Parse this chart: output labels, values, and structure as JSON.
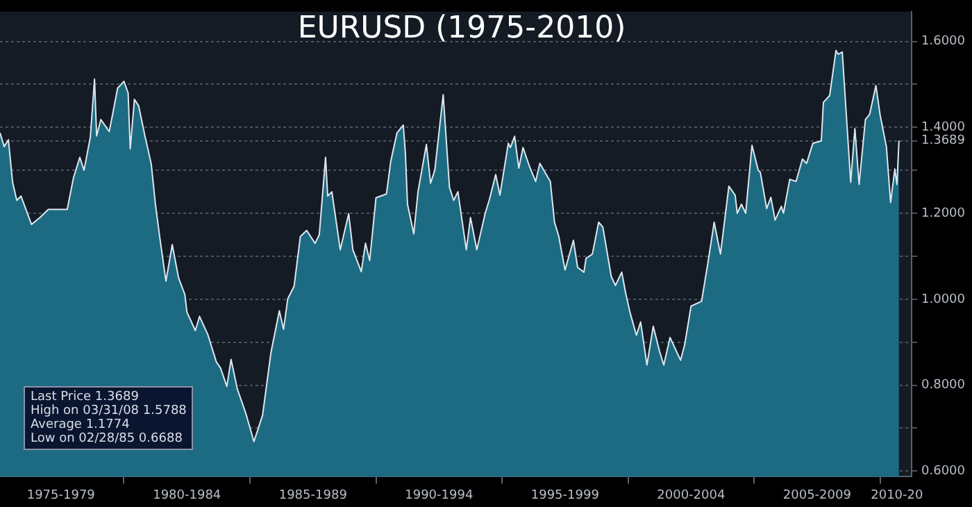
{
  "chart_data": {
    "type": "area",
    "title": "EURUSD (1975-2010)",
    "annotations": [
      "Last Price 1.3689",
      "High on 03/31/08 1.5788",
      "Average 1.1774",
      "Low on 02/28/85 0.6688"
    ],
    "xlim": [
      "1975-02",
      "2011-04"
    ],
    "xticks": [
      {
        "value": "1977-07",
        "label": "1975-1979"
      },
      {
        "value": "1980-01",
        "label": null
      },
      {
        "value": "1982-07",
        "label": "1980-1984"
      },
      {
        "value": "1985-01",
        "label": null
      },
      {
        "value": "1987-07",
        "label": "1985-1989"
      },
      {
        "value": "1990-01",
        "label": null
      },
      {
        "value": "1992-07",
        "label": "1990-1994"
      },
      {
        "value": "1995-01",
        "label": null
      },
      {
        "value": "1997-07",
        "label": "1995-1999"
      },
      {
        "value": "2000-01",
        "label": null
      },
      {
        "value": "2002-07",
        "label": "2000-2004"
      },
      {
        "value": "2005-01",
        "label": null
      },
      {
        "value": "2007-07",
        "label": "2005-2009"
      },
      {
        "value": "2010-01",
        "label": null
      },
      {
        "value": "2010-09",
        "label": "2010-20"
      }
    ],
    "ylim": [
      0.587,
      1.669
    ],
    "yticks": [
      {
        "value": 0.6,
        "label": "0.6000"
      },
      {
        "value": 0.7,
        "label": null
      },
      {
        "value": 0.8,
        "label": "0.8000"
      },
      {
        "value": 0.9,
        "label": null
      },
      {
        "value": 1.0,
        "label": "1.0000"
      },
      {
        "value": 1.1,
        "label": null
      },
      {
        "value": 1.2,
        "label": "1.2000"
      },
      {
        "value": 1.3,
        "label": null
      },
      {
        "value": 1.3689,
        "label": "1.3689"
      },
      {
        "value": 1.4,
        "label": "1.4000"
      },
      {
        "value": 1.5,
        "label": null
      },
      {
        "value": 1.6,
        "label": "1.6000"
      }
    ],
    "grid": "y",
    "series": [
      {
        "color": "#1c6b82",
        "x": [
          "1975-02",
          "1975-04",
          "1975-06",
          "1975-08",
          "1975-10",
          "1975-12",
          "1976-05",
          "1976-09",
          "1977-01",
          "1977-06",
          "1977-10",
          "1978-01",
          "1978-04",
          "1978-06",
          "1978-09",
          "1978-11",
          "1978-12",
          "1979-02",
          "1979-06",
          "1979-08",
          "1979-10",
          "1980-01",
          "1980-03",
          "1980-04",
          "1980-06",
          "1980-08",
          "1980-11",
          "1981-02",
          "1981-04",
          "1981-06",
          "1981-09",
          "1981-12",
          "1982-03",
          "1982-06",
          "1982-07",
          "1982-11",
          "1983-01",
          "1983-05",
          "1983-09",
          "1983-11",
          "1984-02",
          "1984-04",
          "1984-07",
          "1984-11",
          "1985-02-28",
          "1985-07",
          "1985-11",
          "1986-03",
          "1986-05",
          "1986-07",
          "1986-10",
          "1987-01",
          "1987-04",
          "1987-08",
          "1987-10",
          "1988-01",
          "1988-02",
          "1988-04",
          "1988-08",
          "1988-12",
          "1989-02",
          "1989-06",
          "1989-08",
          "1989-10",
          "1990-01",
          "1990-06",
          "1990-08",
          "1990-11",
          "1991-02",
          "1991-03",
          "1991-04",
          "1991-07",
          "1991-09",
          "1992-01",
          "1992-03",
          "1992-05",
          "1992-09",
          "1992-12",
          "1993-02",
          "1993-04",
          "1993-08",
          "1993-10",
          "1994-01",
          "1994-05",
          "1994-07",
          "1994-10",
          "1994-12",
          "1995-04",
          "1995-05",
          "1995-07",
          "1995-09",
          "1995-11",
          "1996-02",
          "1996-05",
          "1996-07",
          "1996-12",
          "1997-02",
          "1997-04",
          "1997-07",
          "1997-11",
          "1998-01",
          "1998-04",
          "1998-05",
          "1998-08",
          "1998-11",
          "1999-01",
          "1999-05",
          "1999-07",
          "1999-10",
          "1999-12",
          "2000-02",
          "2000-05",
          "2000-07",
          "2000-10",
          "2001-01",
          "2001-04",
          "2001-06",
          "2001-09",
          "2002-02",
          "2002-04",
          "2002-07",
          "2002-12",
          "2003-03",
          "2003-06",
          "2003-09",
          "2004-01",
          "2004-04",
          "2004-05",
          "2004-07",
          "2004-09",
          "2004-12",
          "2005-03",
          "2005-04",
          "2005-07",
          "2005-09",
          "2005-11",
          "2006-02",
          "2006-03",
          "2006-06",
          "2006-09",
          "2006-12",
          "2007-02",
          "2007-05",
          "2007-09",
          "2007-10",
          "2008-01",
          "2008-03-31",
          "2008-05",
          "2008-07",
          "2008-11",
          "2009-01",
          "2009-03",
          "2009-06",
          "2009-08",
          "2009-11",
          "2010-01",
          "2010-04",
          "2010-06",
          "2010-08",
          "2010-09",
          "2010-10"
        ],
        "values": [
          1.387,
          1.355,
          1.371,
          1.272,
          1.23,
          1.24,
          1.174,
          1.19,
          1.209,
          1.209,
          1.209,
          1.283,
          1.33,
          1.3,
          1.377,
          1.512,
          1.38,
          1.418,
          1.39,
          1.44,
          1.491,
          1.507,
          1.48,
          1.35,
          1.465,
          1.45,
          1.38,
          1.315,
          1.221,
          1.146,
          1.042,
          1.127,
          1.05,
          1.011,
          0.97,
          0.927,
          0.96,
          0.917,
          0.854,
          0.84,
          0.797,
          0.86,
          0.791,
          0.735,
          0.6688,
          0.73,
          0.876,
          0.973,
          0.93,
          1.001,
          1.03,
          1.146,
          1.16,
          1.13,
          1.15,
          1.33,
          1.24,
          1.25,
          1.115,
          1.199,
          1.115,
          1.064,
          1.13,
          1.09,
          1.236,
          1.245,
          1.32,
          1.387,
          1.405,
          1.34,
          1.221,
          1.152,
          1.25,
          1.36,
          1.27,
          1.3,
          1.476,
          1.26,
          1.23,
          1.25,
          1.115,
          1.19,
          1.115,
          1.2,
          1.232,
          1.29,
          1.242,
          1.363,
          1.353,
          1.379,
          1.305,
          1.353,
          1.31,
          1.274,
          1.316,
          1.274,
          1.179,
          1.147,
          1.068,
          1.137,
          1.074,
          1.063,
          1.095,
          1.105,
          1.179,
          1.168,
          1.053,
          1.032,
          1.063,
          1.011,
          0.968,
          0.916,
          0.947,
          0.847,
          0.937,
          0.879,
          0.847,
          0.911,
          0.858,
          0.895,
          0.984,
          0.995,
          1.084,
          1.179,
          1.105,
          1.263,
          1.242,
          1.2,
          1.221,
          1.2,
          1.358,
          1.3,
          1.295,
          1.211,
          1.237,
          1.184,
          1.216,
          1.2,
          1.279,
          1.274,
          1.326,
          1.316,
          1.363,
          1.368,
          1.458,
          1.474,
          1.5788,
          1.57,
          1.575,
          1.272,
          1.397,
          1.267,
          1.418,
          1.43,
          1.497,
          1.429,
          1.355,
          1.225,
          1.303,
          1.267,
          1.3689
        ]
      }
    ]
  }
}
